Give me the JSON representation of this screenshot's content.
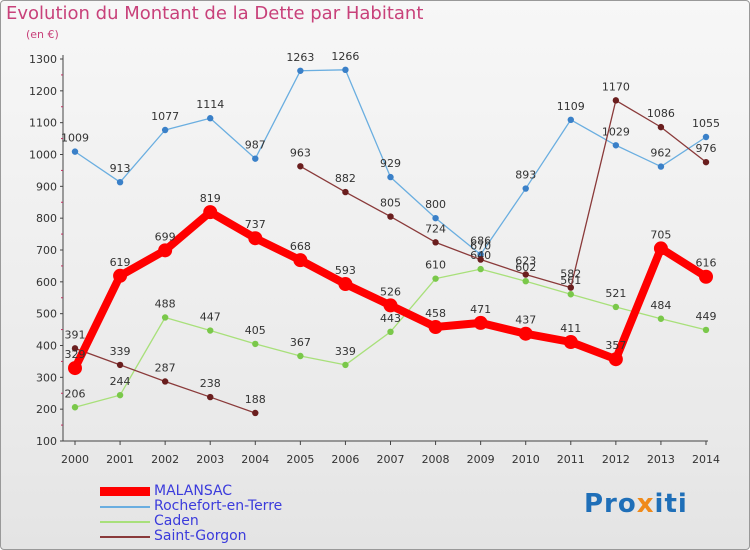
{
  "title": "Evolution du Montant de la Dette par Habitant",
  "subtitle": "(en €)",
  "logo": {
    "prefix": "Pro",
    "x": "x",
    "suffix": "iti"
  },
  "chart_data": {
    "type": "line",
    "title": "Evolution du Montant de la Dette par Habitant",
    "ylabel": "(en €)",
    "xlabel": "",
    "ylim": [
      100,
      1300
    ],
    "yticks": [
      100,
      200,
      300,
      400,
      500,
      600,
      700,
      800,
      900,
      1000,
      1100,
      1200,
      1300
    ],
    "x": [
      "2000",
      "2001",
      "2002",
      "2003",
      "2004",
      "2005",
      "2006",
      "2007",
      "2008",
      "2009",
      "2010",
      "2011",
      "2012",
      "2013",
      "2014"
    ],
    "legend_position": "bottom-left",
    "grid": false,
    "series": [
      {
        "name": "MALANSAC",
        "color": "#ff0000",
        "point_color": "#ff0000",
        "bold": true,
        "values": [
          329,
          619,
          699,
          819,
          737,
          668,
          593,
          526,
          458,
          471,
          437,
          411,
          357,
          705,
          616
        ]
      },
      {
        "name": "Rochefort-en-Terre",
        "color": "#6aaee0",
        "point_color": "#3a80c8",
        "values": [
          1009,
          913,
          1077,
          1114,
          987,
          1263,
          1266,
          929,
          800,
          686,
          893,
          1109,
          1029,
          962,
          1055
        ]
      },
      {
        "name": "Caden",
        "color": "#a8e07a",
        "point_color": "#7ac84a",
        "values": [
          206,
          244,
          488,
          447,
          405,
          367,
          339,
          443,
          610,
          640,
          602,
          561,
          521,
          484,
          449
        ]
      },
      {
        "name": "Saint-Gorgon",
        "color": "#8a3a3a",
        "point_color": "#6a1e1e",
        "values": [
          391,
          339,
          287,
          238,
          188,
          963,
          882,
          805,
          724,
          670,
          623,
          582,
          1170,
          1086,
          976
        ],
        "segments": [
          [
            0,
            4
          ],
          [
            5,
            14
          ]
        ]
      }
    ]
  }
}
